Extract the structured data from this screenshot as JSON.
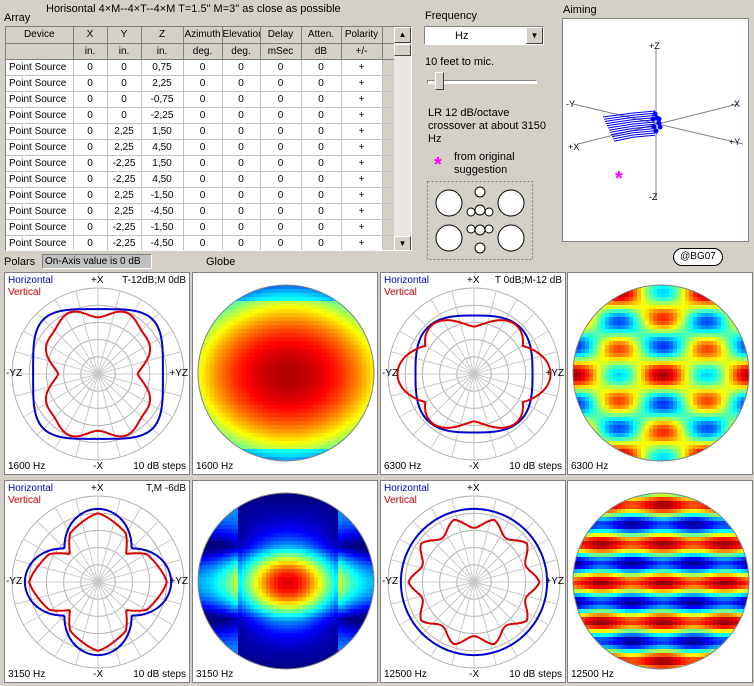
{
  "header": {
    "array_label": "Array",
    "description": "Horisontal 4×M--4×T--4×M   T=1.5\"   M=3\" as close as possible"
  },
  "table": {
    "columns": [
      {
        "name": "Device",
        "unit": ""
      },
      {
        "name": "X",
        "unit": "in."
      },
      {
        "name": "Y",
        "unit": "in."
      },
      {
        "name": "Z",
        "unit": "in."
      },
      {
        "name": "Azimuth",
        "unit": "deg."
      },
      {
        "name": "Elevation",
        "unit": "deg."
      },
      {
        "name": "Delay",
        "unit": "mSec"
      },
      {
        "name": "Atten.",
        "unit": "dB"
      },
      {
        "name": "Polarity",
        "unit": "+/-"
      }
    ],
    "rows": [
      [
        "Point Source",
        "0",
        "0",
        "0,75",
        "0",
        "0",
        "0",
        "0",
        "+"
      ],
      [
        "Point Source",
        "0",
        "0",
        "2,25",
        "0",
        "0",
        "0",
        "0",
        "+"
      ],
      [
        "Point Source",
        "0",
        "0",
        "-0,75",
        "0",
        "0",
        "0",
        "0",
        "+"
      ],
      [
        "Point Source",
        "0",
        "0",
        "-2,25",
        "0",
        "0",
        "0",
        "0",
        "+"
      ],
      [
        "Point Source",
        "0",
        "2,25",
        "1,50",
        "0",
        "0",
        "0",
        "0",
        "+"
      ],
      [
        "Point Source",
        "0",
        "2,25",
        "4,50",
        "0",
        "0",
        "0",
        "0",
        "+"
      ],
      [
        "Point Source",
        "0",
        "-2,25",
        "1,50",
        "0",
        "0",
        "0",
        "0",
        "+"
      ],
      [
        "Point Source",
        "0",
        "-2,25",
        "4,50",
        "0",
        "0",
        "0",
        "0",
        "+"
      ],
      [
        "Point Source",
        "0",
        "2,25",
        "-1,50",
        "0",
        "0",
        "0",
        "0",
        "+"
      ],
      [
        "Point Source",
        "0",
        "2,25",
        "-4,50",
        "0",
        "0",
        "0",
        "0",
        "+"
      ],
      [
        "Point Source",
        "0",
        "-2,25",
        "-1,50",
        "0",
        "0",
        "0",
        "0",
        "+"
      ],
      [
        "Point Source",
        "0",
        "-2,25",
        "-4,50",
        "0",
        "0",
        "0",
        "0",
        "+"
      ]
    ]
  },
  "frequency": {
    "label": "Frequency",
    "selected": "Hz",
    "slider_caption": "10 feet to mic.",
    "slider_fraction": 0.08,
    "note": "LR 12 dB/octave crossover at about 3150 Hz",
    "legend_star": "*",
    "legend_text": "from original suggestion"
  },
  "aiming": {
    "label": "Aiming",
    "axes": {
      "plus_z": "+Z",
      "minus_z": "-Z",
      "minus_y": "-Y",
      "plus_y": "+Y",
      "plus_x": "+X",
      "minus_x": "-X"
    },
    "badge": "@BG07",
    "marker_color": "#ff00ff"
  },
  "bottom_bar": {
    "polars_label": "Polars",
    "onaxis_button": "On-Axis value is 0 dB",
    "globe_label": "Globe"
  },
  "polars": [
    {
      "freq": "1600 Hz",
      "title": "T-12dB;M 0dB",
      "steps": "10 dB steps",
      "horizontal": "Horizontal",
      "vertical": "Vertical",
      "top": "+X",
      "bottom": "-X",
      "left": "-YZ",
      "right": "+YZ"
    },
    {
      "freq": "6300 Hz",
      "title": "T 0dB;M-12 dB",
      "steps": "10 dB steps",
      "horizontal": "Horizontal",
      "vertical": "Vertical",
      "top": "+X",
      "bottom": "-X",
      "left": "-YZ",
      "right": "+YZ"
    },
    {
      "freq": "3150 Hz",
      "title": "T,M -6dB",
      "steps": "10 dB steps",
      "horizontal": "Horizontal",
      "vertical": "Vertical",
      "top": "+X",
      "bottom": "-X",
      "left": "-YZ",
      "right": "+YZ"
    },
    {
      "freq": "12500 Hz",
      "title": "",
      "steps": "10 dB steps",
      "horizontal": "Horizontal",
      "vertical": "Vertical",
      "top": "+X",
      "bottom": "-X",
      "left": "-YZ",
      "right": "+YZ"
    }
  ],
  "globes": [
    {
      "freq": "1600 Hz"
    },
    {
      "freq": "6300 Hz"
    },
    {
      "freq": "3150 Hz"
    },
    {
      "freq": "12500 Hz"
    }
  ],
  "colors": {
    "horizontal": "#0000cc",
    "vertical": "#dd0000",
    "accent": "#ff00ff"
  }
}
